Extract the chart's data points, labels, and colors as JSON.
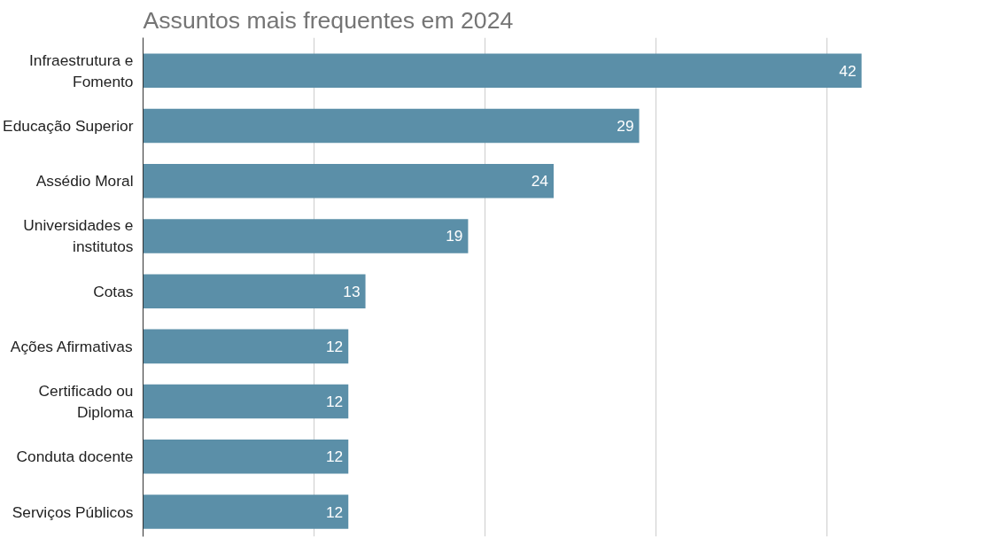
{
  "chart_data": {
    "type": "bar",
    "orientation": "horizontal",
    "title": "Assuntos mais frequentes em 2024",
    "categories": [
      "Infraestrutura e\nFomento",
      "Educação Superior",
      "Assédio Moral",
      "Universidades e\ninstitutos",
      "Cotas",
      "Ações Afirmativas",
      "Certificado ou\nDiploma",
      "Conduta docente",
      "Serviços Públicos"
    ],
    "values": [
      42,
      29,
      24,
      19,
      13,
      12,
      12,
      12,
      12
    ],
    "color": "#5b8fa8",
    "data_labels": true,
    "grid": "x",
    "tick_labels": "y",
    "xticks": [
      {
        "value": 0,
        "label": null
      },
      {
        "value": 10,
        "label": null
      },
      {
        "value": 20,
        "label": null
      },
      {
        "value": 30,
        "label": null
      },
      {
        "value": 40,
        "label": null
      }
    ]
  }
}
